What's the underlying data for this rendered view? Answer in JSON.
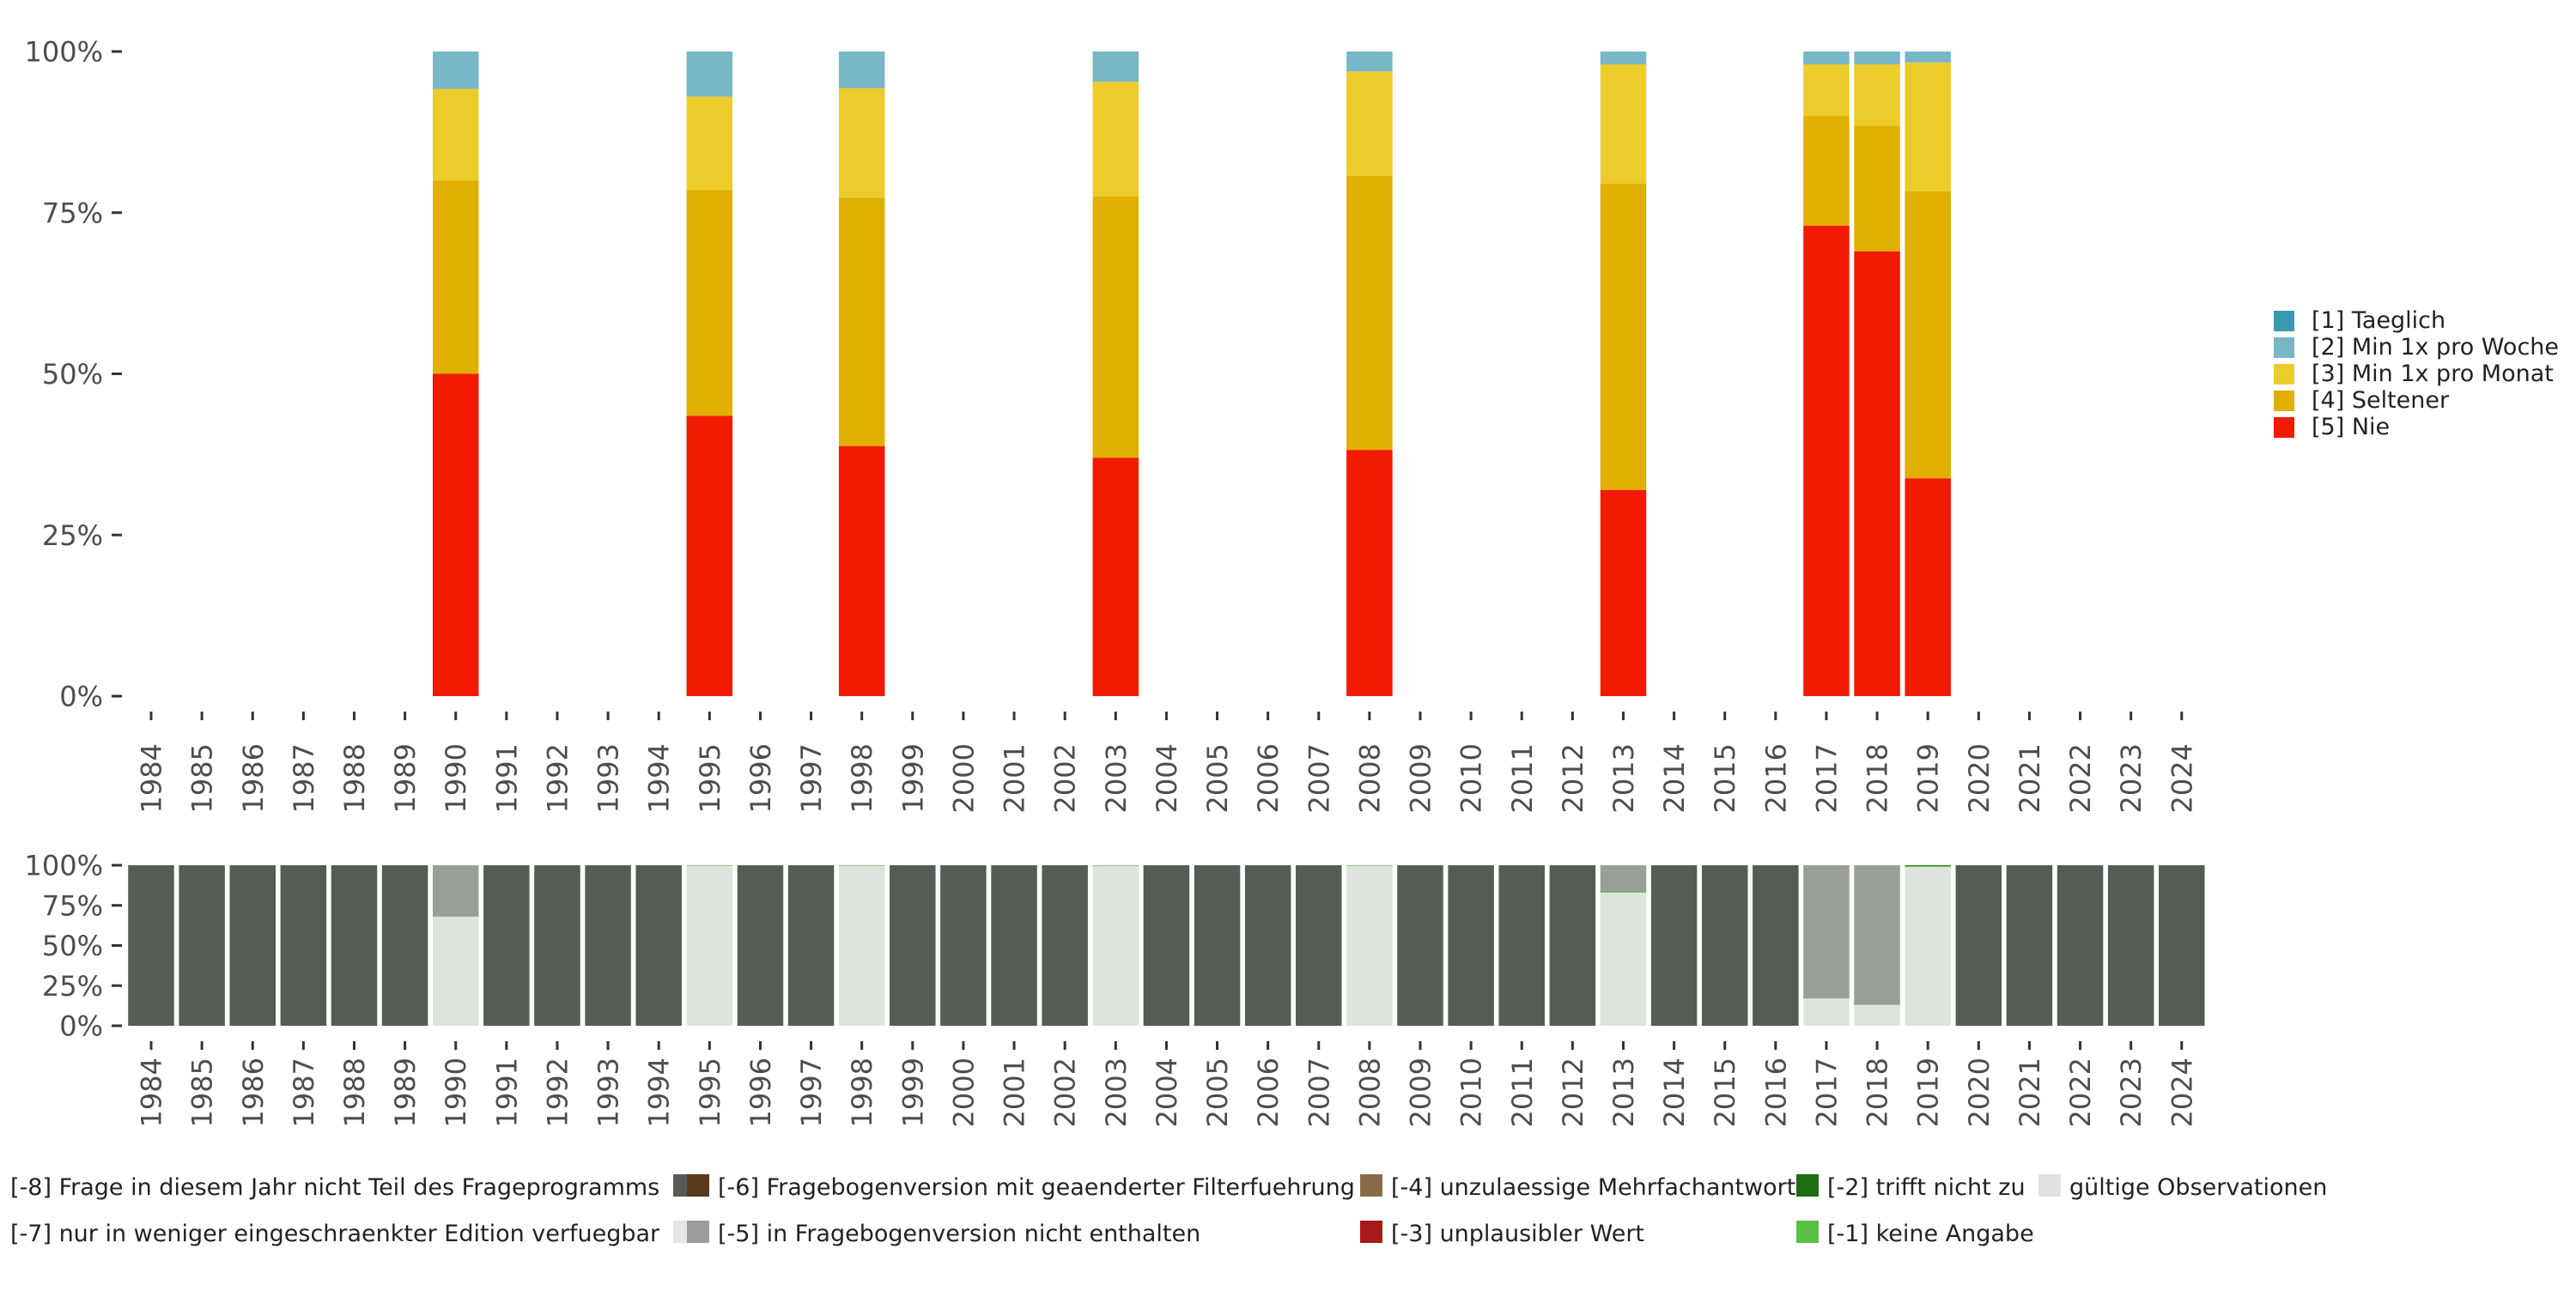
{
  "chart_data": [
    {
      "type": "bar",
      "stacked": true,
      "name": "response-distribution",
      "categories": [
        "1984",
        "1985",
        "1986",
        "1987",
        "1988",
        "1989",
        "1990",
        "1991",
        "1992",
        "1993",
        "1994",
        "1995",
        "1996",
        "1997",
        "1998",
        "1999",
        "2000",
        "2001",
        "2002",
        "2003",
        "2004",
        "2005",
        "2006",
        "2007",
        "2008",
        "2009",
        "2010",
        "2011",
        "2012",
        "2013",
        "2014",
        "2015",
        "2016",
        "2017",
        "2018",
        "2019",
        "2020",
        "2021",
        "2022",
        "2023",
        "2024"
      ],
      "ylim": [
        0,
        100
      ],
      "y_ticks": [
        "0%",
        "25%",
        "50%",
        "75%",
        "100%"
      ],
      "y_tick_values": [
        0,
        25,
        50,
        75,
        100
      ],
      "legend_position": "right",
      "series": [
        {
          "name": "[5] Nie",
          "color": "#F21A00",
          "values": {
            "1990": 50,
            "1995": 43.5,
            "1998": 38.8,
            "2003": 37,
            "2008": 38.2,
            "2013": 32,
            "2017": 73,
            "2018": 69,
            "2019": 33.8
          }
        },
        {
          "name": "[4] Seltener",
          "color": "#E1AF00",
          "values": {
            "1990": 30,
            "1995": 35,
            "1998": 38.5,
            "2003": 40.5,
            "2008": 42.5,
            "2013": 47.5,
            "2017": 17,
            "2018": 19.5,
            "2019": 44.5
          }
        },
        {
          "name": "[3] Min 1x pro Monat",
          "color": "#EBCC2A",
          "values": {
            "1990": 14.2,
            "1995": 14.5,
            "1998": 17,
            "2003": 17.8,
            "2008": 16.2,
            "2013": 18.5,
            "2017": 8,
            "2018": 9.5,
            "2019": 20
          }
        },
        {
          "name": "[2] Min 1x pro Woche",
          "color": "#78B7C5",
          "values": {
            "1990": 5.8,
            "1995": 7,
            "1998": 5.7,
            "2003": 4.7,
            "2008": 3.1,
            "2013": 2,
            "2017": 2,
            "2018": 2,
            "2019": 1.7
          }
        },
        {
          "name": "[1] Taeglich",
          "color": "#3B9AB2",
          "values": {}
        }
      ]
    },
    {
      "type": "bar",
      "stacked": true,
      "name": "data-availability",
      "categories": [
        "1984",
        "1985",
        "1986",
        "1987",
        "1988",
        "1989",
        "1990",
        "1991",
        "1992",
        "1993",
        "1994",
        "1995",
        "1996",
        "1997",
        "1998",
        "1999",
        "2000",
        "2001",
        "2002",
        "2003",
        "2004",
        "2005",
        "2006",
        "2007",
        "2008",
        "2009",
        "2010",
        "2011",
        "2012",
        "2013",
        "2014",
        "2015",
        "2016",
        "2017",
        "2018",
        "2019",
        "2020",
        "2021",
        "2022",
        "2023",
        "2024"
      ],
      "ylim": [
        0,
        100
      ],
      "y_ticks": [
        "0%",
        "25%",
        "50%",
        "75%",
        "100%"
      ],
      "y_tick_values": [
        0,
        25,
        50,
        75,
        100
      ],
      "legend_position": "bottom",
      "series": [
        {
          "name": "gültige Observationen",
          "color": "#DFE3DE",
          "values": {
            "1990": 68,
            "1995": 99.6,
            "1998": 99.6,
            "2003": 99.6,
            "2008": 99.6,
            "2013": 83,
            "2017": 17,
            "2018": 13,
            "2019": 99
          }
        },
        {
          "name": "[-1] keine Angabe",
          "color": "#5BBF45",
          "values": {
            "1995": 0.4,
            "1998": 0.4,
            "2003": 0.4,
            "2008": 0.4,
            "2013": 1,
            "2019": 0.5
          }
        },
        {
          "name": "[-2] trifft nicht zu",
          "color": "#1E6B12",
          "values": {
            "2019": 0.5
          }
        },
        {
          "name": "[-3] unplausibler Wert",
          "color": "#A51A1A",
          "values": {}
        },
        {
          "name": "[-4] unzulaessige Mehrfachantwort",
          "color": "#8B6A4A",
          "values": {}
        },
        {
          "name": "[-5] in Fragebogenversion nicht enthalten",
          "color": "#9A9E98",
          "values": {
            "1990": 32,
            "2013": 16,
            "2017": 83,
            "2018": 87
          }
        },
        {
          "name": "[-6] Fragebogenversion mit geaenderter Filterfuehrung",
          "color": "#5A3A1C",
          "values": {}
        },
        {
          "name": "[-7] nur in weniger eingeschraenkter Edition verfuegbar",
          "color": "#E3E6E2",
          "values": {}
        },
        {
          "name": "[-8] Frage in diesem Jahr nicht Teil des Frageprogramms",
          "color": "#555B55",
          "values": {
            "1984": 100,
            "1985": 100,
            "1986": 100,
            "1987": 100,
            "1988": 100,
            "1989": 100,
            "1991": 100,
            "1992": 100,
            "1993": 100,
            "1994": 100,
            "1996": 100,
            "1997": 100,
            "1999": 100,
            "2000": 100,
            "2001": 100,
            "2002": 100,
            "2004": 100,
            "2005": 100,
            "2006": 100,
            "2007": 100,
            "2009": 100,
            "2010": 100,
            "2011": 100,
            "2012": 100,
            "2014": 100,
            "2015": 100,
            "2016": 100,
            "2020": 100,
            "2021": 100,
            "2022": 100,
            "2023": 100,
            "2024": 100
          }
        }
      ]
    }
  ]
}
